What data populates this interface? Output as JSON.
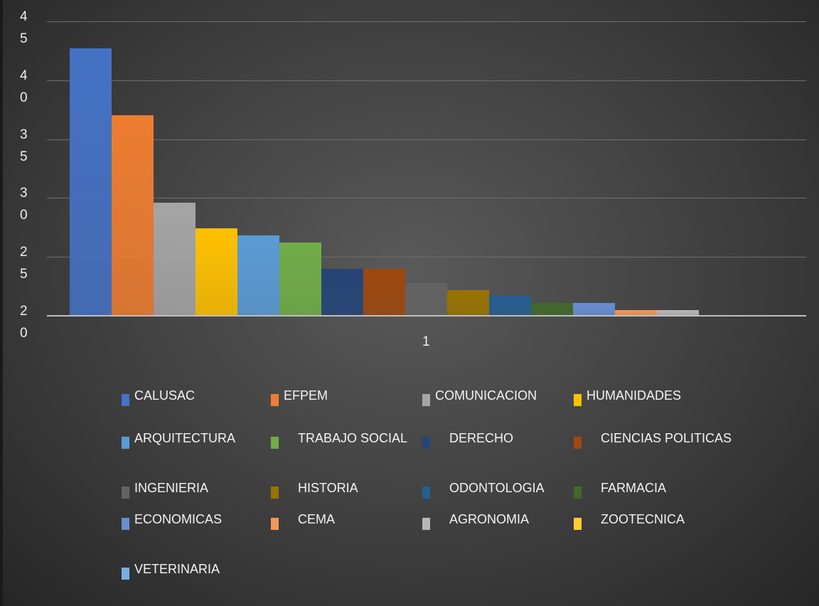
{
  "chart_data": {
    "type": "bar",
    "categories": [
      "1"
    ],
    "ylim": [
      20,
      45
    ],
    "yticks": [
      20,
      25,
      30,
      35,
      40,
      45
    ],
    "grid": true,
    "legend": "bottom",
    "series": [
      {
        "name": "CALUSAC",
        "color": "#4472c4",
        "values": [
          42.7
        ]
      },
      {
        "name": "EFPEM",
        "color": "#ed7d31",
        "values": [
          37
        ]
      },
      {
        "name": "COMUNICACION",
        "color": "#a5a5a5",
        "values": [
          29.6
        ]
      },
      {
        "name": "HUMANIDADES",
        "color": "#ffc000",
        "values": [
          27.4
        ]
      },
      {
        "name": "ARQUITECTURA",
        "color": "#5b9bd5",
        "values": [
          26.8
        ]
      },
      {
        "name": "TRABAJO SOCIAL",
        "color": "#70ad47",
        "values": [
          26.2
        ]
      },
      {
        "name": "DERECHO",
        "color": "#264478",
        "values": [
          24
        ]
      },
      {
        "name": "CIENCIAS POLITICAS",
        "color": "#9e480e",
        "values": [
          24
        ]
      },
      {
        "name": "INGENIERIA",
        "color": "#636363",
        "values": [
          22.8
        ]
      },
      {
        "name": "HISTORIA",
        "color": "#997300",
        "values": [
          22.2
        ]
      },
      {
        "name": "ODONTOLOGIA",
        "color": "#255e91",
        "values": [
          21.7
        ]
      },
      {
        "name": "FARMACIA",
        "color": "#43682b",
        "values": [
          21.1
        ]
      },
      {
        "name": "ECONOMICAS",
        "color": "#698ed0",
        "values": [
          21.1
        ]
      },
      {
        "name": "CEMA",
        "color": "#f1975a",
        "values": [
          20.5
        ]
      },
      {
        "name": "AGRONOMIA",
        "color": "#b7b7b7",
        "values": [
          20.5
        ]
      },
      {
        "name": "ZOOTECNICA",
        "color": "#ffcd33",
        "values": [
          20
        ]
      },
      {
        "name": "VETERINARIA",
        "color": "#7cafdd",
        "values": [
          20
        ]
      }
    ]
  }
}
